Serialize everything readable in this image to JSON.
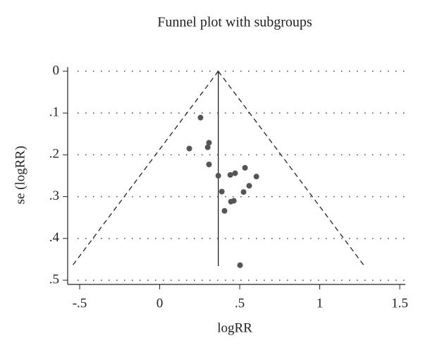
{
  "chart_data": {
    "type": "scatter",
    "title": "Funnel plot with subgroups",
    "x_label": "logRR",
    "y_label": "se (logRR)",
    "xlim": [
      -0.575,
      1.535
    ],
    "ylim": [
      -0.01,
      0.51
    ],
    "y_reversed": true,
    "xticks": [
      {
        "value": -0.5,
        "label": "-.5"
      },
      0,
      {
        "value": 0.5,
        "label": ".5"
      },
      1,
      1.5
    ],
    "yticks": [
      0,
      {
        "value": 0.1,
        "label": ".1"
      },
      {
        "value": 0.2,
        "label": ".2"
      },
      {
        "value": 0.3,
        "label": ".3"
      },
      {
        "value": 0.4,
        "label": ".4"
      },
      {
        "value": 0.5,
        "label": ".5"
      }
    ],
    "grid": true,
    "series": [
      {
        "color": "#555555",
        "x": [
          0.255,
          0.185,
          0.308,
          0.3,
          0.308,
          0.366,
          0.441,
          0.471,
          0.533,
          0.604,
          0.559,
          0.388,
          0.524,
          0.463,
          0.445,
          0.405,
          0.502
        ],
        "values": [
          0.111,
          0.185,
          0.171,
          0.182,
          0.223,
          0.25,
          0.248,
          0.244,
          0.231,
          0.252,
          0.274,
          0.288,
          0.289,
          0.31,
          0.312,
          0.334,
          0.464
        ]
      }
    ],
    "lines": [
      {
        "style": "solid",
        "x": [
          0.366,
          0.366
        ],
        "y": [
          0,
          0.466
        ]
      },
      {
        "style": "dashed",
        "x": [
          0.366,
          -0.547
        ],
        "y": [
          0,
          0.466
        ]
      },
      {
        "style": "dashed",
        "x": [
          0.366,
          1.279
        ],
        "y": [
          0,
          0.466
        ]
      }
    ]
  }
}
